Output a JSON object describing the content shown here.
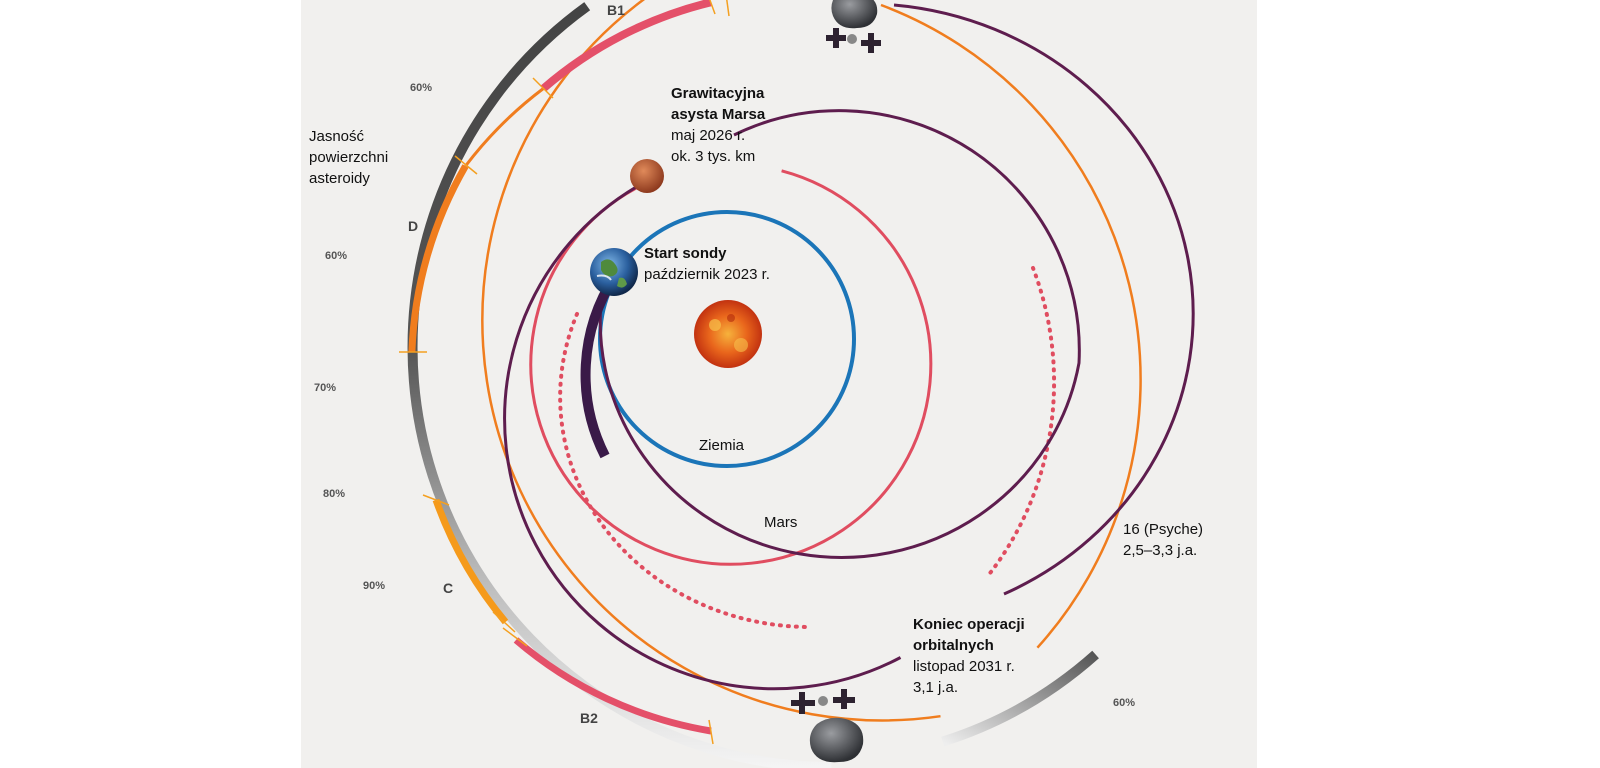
{
  "labels": {
    "brightness": [
      "Jasność",
      "powierzchni",
      "asteroidy"
    ],
    "mars_assist": {
      "title": [
        "Grawitacyjna",
        "asysta Marsa"
      ],
      "date": "maj 2026 r.",
      "distance": "ok. 3 tys. km"
    },
    "launch": {
      "title": "Start sondy",
      "date": "październik 2023 r."
    },
    "earth": "Ziemia",
    "mars": "Mars",
    "psyche": {
      "name": "16 (Psyche)",
      "range": "2,5–3,3 j.a."
    },
    "end": {
      "title": [
        "Koniec operacji",
        "orbitalnych"
      ],
      "date": "listopad 2031 r.",
      "distance": "3,1 j.a."
    }
  },
  "percentages": [
    "60%",
    "60%",
    "70%",
    "80%",
    "90%",
    "60%"
  ],
  "segments": [
    "B1",
    "D",
    "C",
    "B2"
  ],
  "colors": {
    "background": "#f1f0ee",
    "earth_orbit": "#1b75b8",
    "mars_orbit": "#e04d60",
    "trajectory": "#5e1d4e",
    "psyche_orbit": "#f07d1e",
    "sun": "#e04a14"
  },
  "icons": [
    "sun-icon",
    "earth-icon",
    "mars-icon",
    "asteroid-icon",
    "spacecraft-icon"
  ]
}
